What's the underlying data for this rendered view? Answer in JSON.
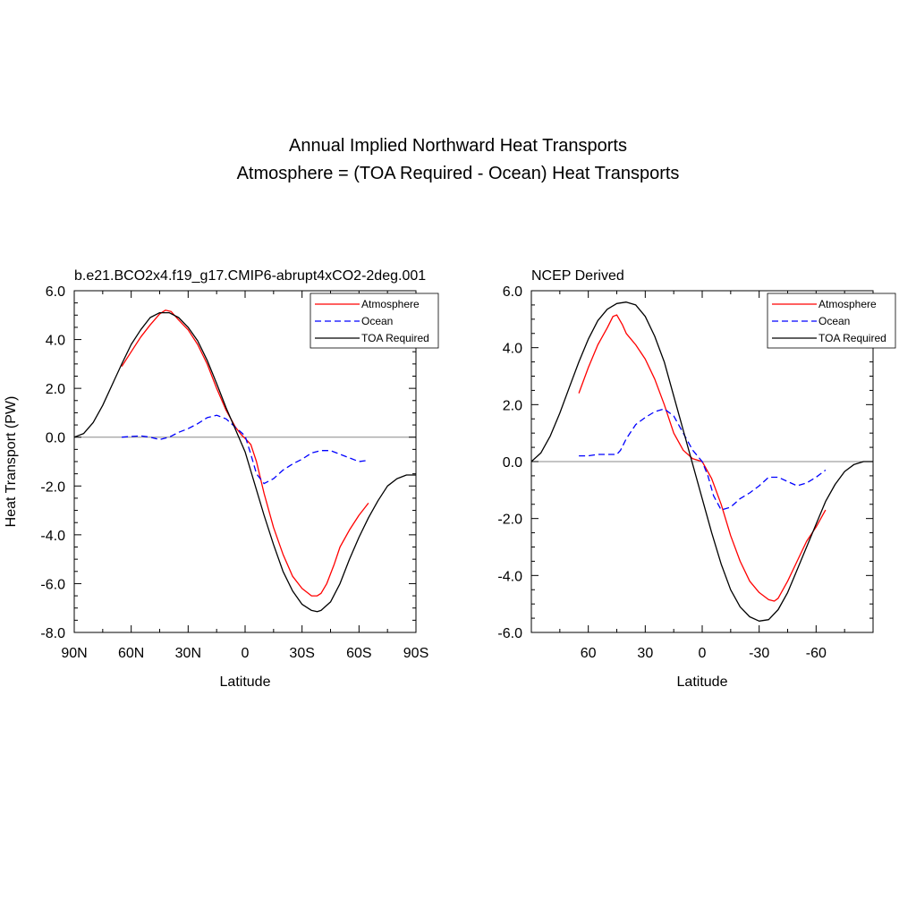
{
  "title": {
    "line1": "Annual Implied Northward Heat Transports",
    "line2": "Atmosphere = (TOA Required - Ocean) Heat Transports"
  },
  "colors": {
    "atmosphere": "#ff0000",
    "ocean": "#0000ff",
    "toa": "#000000",
    "zero_line": "#888888"
  },
  "chart_data": [
    {
      "type": "line",
      "title": "b.e21.BCO2x4.f19_g17.CMIP6-abrupt4xCO2-2deg.001",
      "xlabel": "Latitude",
      "ylabel": "Heat Transport (PW)",
      "xlim": [
        90,
        -90
      ],
      "ylim": [
        -8,
        6
      ],
      "xticks": [
        90,
        60,
        30,
        0,
        -30,
        -60,
        -90
      ],
      "xtick_labels": [
        "90N",
        "60N",
        "30N",
        "0",
        "30S",
        "60S",
        "90S"
      ],
      "yticks": [
        6,
        4,
        2,
        0,
        -2,
        -4,
        -6,
        -8
      ],
      "ytick_labels": [
        "6.0",
        "4.0",
        "2.0",
        "0.0",
        "-2.0",
        "-4.0",
        "-6.0",
        "-8.0"
      ],
      "legend": [
        "Atmosphere",
        "Ocean",
        "TOA Required"
      ],
      "legend_position": "top-right",
      "series": [
        {
          "name": "Atmosphere",
          "style": "solid",
          "color": "red",
          "x": [
            65,
            60,
            55,
            50,
            45,
            42,
            39,
            35,
            30,
            25,
            20,
            15,
            10,
            5,
            2,
            0,
            -3,
            -6,
            -10,
            -15,
            -20,
            -25,
            -30,
            -35,
            -38,
            -40,
            -43,
            -47,
            -50,
            -55,
            -60,
            -65
          ],
          "y": [
            2.9,
            3.5,
            4.1,
            4.6,
            5.05,
            5.2,
            5.15,
            4.8,
            4.4,
            3.8,
            3.0,
            2.0,
            1.1,
            0.4,
            0.1,
            -0.05,
            -0.3,
            -1.0,
            -2.3,
            -3.7,
            -4.8,
            -5.7,
            -6.2,
            -6.5,
            -6.5,
            -6.4,
            -6.0,
            -5.2,
            -4.5,
            -3.8,
            -3.2,
            -2.7
          ]
        },
        {
          "name": "Ocean",
          "style": "dashed",
          "color": "blue",
          "x": [
            65,
            60,
            55,
            50,
            45,
            40,
            35,
            30,
            25,
            20,
            15,
            10,
            5,
            0,
            -3,
            -6,
            -10,
            -15,
            -20,
            -25,
            -30,
            -35,
            -40,
            -45,
            -50,
            -55,
            -60,
            -65
          ],
          "y": [
            0.0,
            0.03,
            0.05,
            0.0,
            -0.1,
            0.0,
            0.2,
            0.35,
            0.55,
            0.8,
            0.9,
            0.75,
            0.4,
            0.05,
            -0.7,
            -1.5,
            -1.9,
            -1.7,
            -1.35,
            -1.1,
            -0.9,
            -0.65,
            -0.55,
            -0.55,
            -0.7,
            -0.85,
            -1.0,
            -0.95
          ]
        },
        {
          "name": "TOA Required",
          "style": "solid",
          "color": "black",
          "x": [
            90,
            85,
            80,
            75,
            70,
            65,
            60,
            55,
            50,
            45,
            40,
            35,
            30,
            25,
            20,
            15,
            10,
            5,
            0,
            -5,
            -10,
            -15,
            -20,
            -25,
            -30,
            -35,
            -38,
            -40,
            -45,
            -50,
            -55,
            -60,
            -65,
            -70,
            -75,
            -80,
            -85,
            -90
          ],
          "y": [
            0.0,
            0.15,
            0.6,
            1.3,
            2.15,
            3.0,
            3.8,
            4.4,
            4.9,
            5.1,
            5.1,
            4.9,
            4.5,
            3.95,
            3.15,
            2.2,
            1.2,
            0.3,
            -0.6,
            -1.9,
            -3.2,
            -4.4,
            -5.5,
            -6.3,
            -6.85,
            -7.1,
            -7.15,
            -7.1,
            -6.75,
            -6.0,
            -5.0,
            -4.1,
            -3.3,
            -2.6,
            -2.0,
            -1.7,
            -1.55,
            -1.55
          ]
        }
      ]
    },
    {
      "type": "line",
      "title": "NCEP Derived",
      "xlabel": "Latitude",
      "ylabel": "",
      "xlim": [
        90,
        -90
      ],
      "ylim": [
        -6,
        6
      ],
      "xticks": [
        60,
        30,
        0,
        -30,
        -60
      ],
      "xtick_labels": [
        "60",
        "30",
        "0",
        "-30",
        "-60"
      ],
      "yticks": [
        6,
        4,
        2,
        0,
        -2,
        -4,
        -6
      ],
      "ytick_labels": [
        "6.0",
        "4.0",
        "2.0",
        "0.0",
        "-2.0",
        "-4.0",
        "-6.0"
      ],
      "legend": [
        "Atmosphere",
        "Ocean",
        "TOA Required"
      ],
      "legend_position": "top-right",
      "series": [
        {
          "name": "Atmosphere",
          "style": "solid",
          "color": "red",
          "x": [
            65,
            60,
            55,
            50,
            47,
            45,
            42,
            40,
            35,
            30,
            25,
            20,
            15,
            10,
            5,
            0,
            -5,
            -10,
            -15,
            -20,
            -25,
            -30,
            -35,
            -38,
            -40,
            -45,
            -50,
            -55,
            -60,
            -65
          ],
          "y": [
            2.4,
            3.3,
            4.1,
            4.7,
            5.1,
            5.15,
            4.8,
            4.5,
            4.1,
            3.6,
            2.9,
            2.0,
            1.0,
            0.4,
            0.1,
            0.0,
            -0.6,
            -1.5,
            -2.6,
            -3.5,
            -4.2,
            -4.6,
            -4.85,
            -4.9,
            -4.8,
            -4.2,
            -3.5,
            -2.8,
            -2.3,
            -1.7
          ]
        },
        {
          "name": "Ocean",
          "style": "dashed",
          "color": "blue",
          "x": [
            65,
            60,
            55,
            50,
            45,
            43,
            40,
            35,
            30,
            25,
            20,
            15,
            10,
            5,
            0,
            -3,
            -6,
            -10,
            -15,
            -20,
            -25,
            -30,
            -35,
            -40,
            -45,
            -50,
            -55,
            -60,
            -65
          ],
          "y": [
            0.2,
            0.2,
            0.25,
            0.25,
            0.25,
            0.4,
            0.8,
            1.3,
            1.55,
            1.75,
            1.85,
            1.6,
            1.0,
            0.4,
            0.0,
            -0.5,
            -1.2,
            -1.7,
            -1.6,
            -1.3,
            -1.1,
            -0.85,
            -0.55,
            -0.55,
            -0.7,
            -0.85,
            -0.75,
            -0.55,
            -0.3
          ]
        },
        {
          "name": "TOA Required",
          "style": "solid",
          "color": "black",
          "x": [
            90,
            85,
            80,
            75,
            70,
            65,
            60,
            55,
            50,
            45,
            40,
            35,
            30,
            25,
            20,
            15,
            10,
            5,
            0,
            -5,
            -10,
            -15,
            -20,
            -25,
            -30,
            -35,
            -40,
            -45,
            -50,
            -55,
            -60,
            -65,
            -70,
            -75,
            -80,
            -85,
            -90
          ],
          "y": [
            0.0,
            0.3,
            0.9,
            1.7,
            2.6,
            3.5,
            4.3,
            4.95,
            5.35,
            5.55,
            5.6,
            5.5,
            5.1,
            4.4,
            3.5,
            2.3,
            1.1,
            -0.1,
            -1.3,
            -2.5,
            -3.6,
            -4.5,
            -5.1,
            -5.45,
            -5.6,
            -5.55,
            -5.2,
            -4.6,
            -3.8,
            -3.0,
            -2.2,
            -1.4,
            -0.8,
            -0.35,
            -0.1,
            0.0,
            0.0
          ]
        }
      ]
    }
  ]
}
